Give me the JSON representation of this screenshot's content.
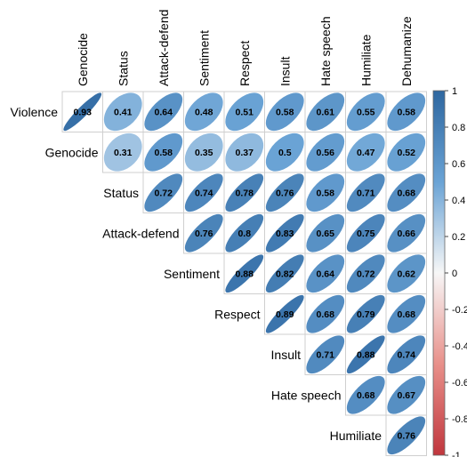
{
  "chart_data": {
    "type": "heatmap",
    "variant": "correlation-matrix-ellipse-upper",
    "row_labels": [
      "Violence",
      "Genocide",
      "Status",
      "Attack-defend",
      "Sentiment",
      "Respect",
      "Insult",
      "Hate speech",
      "Humiliate"
    ],
    "column_labels": [
      "Genocide",
      "Status",
      "Attack-defend",
      "Sentiment",
      "Respect",
      "Insult",
      "Hate speech",
      "Humiliate",
      "Dehumanize"
    ],
    "values": [
      [
        0.93,
        0.41,
        0.64,
        0.48,
        0.51,
        0.58,
        0.61,
        0.55,
        0.58
      ],
      [
        null,
        0.31,
        0.58,
        0.35,
        0.37,
        0.5,
        0.56,
        0.47,
        0.52
      ],
      [
        null,
        null,
        0.72,
        0.74,
        0.78,
        0.76,
        0.58,
        0.71,
        0.68
      ],
      [
        null,
        null,
        null,
        0.76,
        0.8,
        0.83,
        0.65,
        0.75,
        0.66
      ],
      [
        null,
        null,
        null,
        null,
        0.88,
        0.82,
        0.64,
        0.72,
        0.62
      ],
      [
        null,
        null,
        null,
        null,
        null,
        0.89,
        0.68,
        0.79,
        0.68
      ],
      [
        null,
        null,
        null,
        null,
        null,
        null,
        0.71,
        0.88,
        0.74
      ],
      [
        null,
        null,
        null,
        null,
        null,
        null,
        null,
        0.68,
        0.67
      ],
      [
        null,
        null,
        null,
        null,
        null,
        null,
        null,
        null,
        0.76
      ]
    ],
    "legend": {
      "placement": "right",
      "range": [
        -1,
        1
      ],
      "ticks": [
        1,
        0.8,
        0.6,
        0.4,
        0.2,
        0,
        -0.2,
        -0.4,
        -0.6,
        -0.8,
        -1
      ],
      "tick_labels": [
        "1",
        "0.8",
        "0.6",
        "0.4",
        "0.2",
        "0",
        "-0.2",
        "-0.4",
        "-0.6",
        "-0.8",
        "-1"
      ]
    },
    "colors": {
      "positive_max": "#2e67a0",
      "positive_mid": "#6aa3d5",
      "neutral": "#f7f7f7",
      "negative_mid": "#e8908a",
      "negative_max": "#c0363d",
      "grid": "#cfcfcf"
    }
  }
}
